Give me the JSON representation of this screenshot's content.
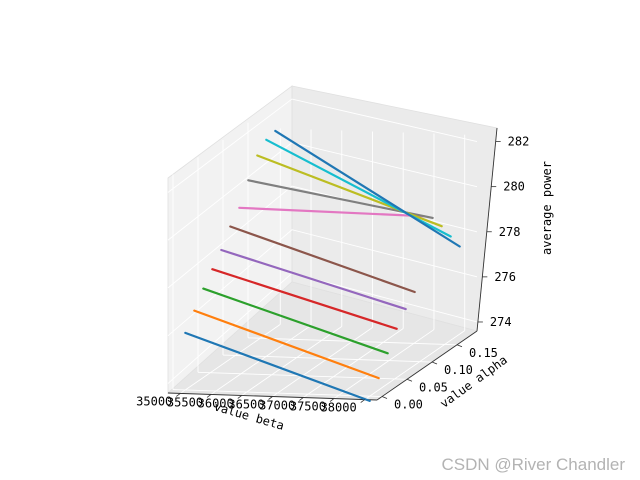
{
  "chart_data": {
    "type": "line3d",
    "x_axis": {
      "label": "value beta",
      "ticks": [
        35000,
        35500,
        36000,
        36500,
        37000,
        37500,
        38000
      ],
      "tick_labels": [
        "35000",
        "35500",
        "36000",
        "36500",
        "37000",
        "37500",
        "38000"
      ],
      "range": [
        34800,
        38200
      ]
    },
    "y_axis": {
      "label": "value alpha",
      "ticks": [
        0.0,
        0.05,
        0.1,
        0.15
      ],
      "tick_labels": [
        "0.00",
        "0.05",
        "0.10",
        "0.15"
      ],
      "range": [
        -0.01,
        0.19
      ]
    },
    "z_axis": {
      "label": "average power",
      "ticks": [
        274,
        276,
        278,
        280,
        282
      ],
      "tick_labels": [
        "274",
        "276",
        "278",
        "280",
        "282"
      ],
      "range": [
        273.6,
        282.6
      ]
    },
    "grid": true,
    "colors": [
      "#1f77b4",
      "#ff7f0e",
      "#2ca02c",
      "#d62728",
      "#9467bd",
      "#8c564b",
      "#e377c2",
      "#7f7f7f",
      "#bcbd22",
      "#17becf"
    ],
    "series": [
      {
        "alpha": 0.0,
        "beta": [
          35000,
          38000
        ],
        "power": [
          276.0,
          273.4
        ]
      },
      {
        "alpha": 0.018,
        "beta": [
          35000,
          38000
        ],
        "power": [
          276.7,
          274.1
        ]
      },
      {
        "alpha": 0.036,
        "beta": [
          35000,
          38000
        ],
        "power": [
          277.4,
          274.9
        ]
      },
      {
        "alpha": 0.054,
        "beta": [
          35000,
          38000
        ],
        "power": [
          278.0,
          275.7
        ]
      },
      {
        "alpha": 0.072,
        "beta": [
          35000,
          38000
        ],
        "power": [
          278.6,
          276.3
        ]
      },
      {
        "alpha": 0.09,
        "beta": [
          35000,
          38000
        ],
        "power": [
          279.4,
          276.8
        ]
      },
      {
        "alpha": 0.108,
        "beta": [
          35000,
          38000
        ],
        "power": [
          280.0,
          279.9
        ]
      },
      {
        "alpha": 0.126,
        "beta": [
          35000,
          38000
        ],
        "power": [
          281.0,
          279.6
        ]
      },
      {
        "alpha": 0.144,
        "beta": [
          35000,
          38000
        ],
        "power": [
          281.9,
          279.0
        ]
      },
      {
        "alpha": 0.162,
        "beta": [
          35000,
          38000
        ],
        "power": [
          282.4,
          278.3
        ]
      },
      {
        "alpha": 0.18,
        "beta": [
          35000,
          38000
        ],
        "power": [
          282.6,
          277.6
        ]
      }
    ]
  },
  "watermark": "CSDN @River Chandler"
}
